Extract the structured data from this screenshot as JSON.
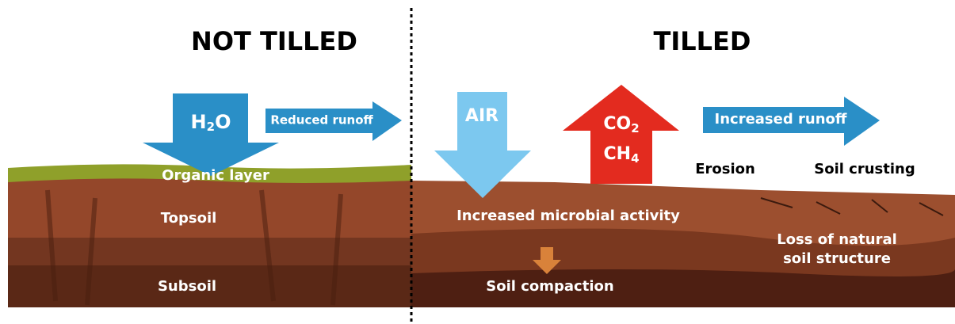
{
  "left": {
    "title": "NOT TILLED",
    "water": [
      "H",
      "2",
      "O"
    ],
    "runoff": "Reduced runoff",
    "layers": [
      "Organic layer",
      "Topsoil",
      "Subsoil"
    ]
  },
  "right": {
    "title": "TILLED",
    "air": "AIR",
    "co2": [
      "CO",
      "2"
    ],
    "ch4": [
      "CH",
      "4"
    ],
    "runoff": "Increased runoff",
    "erosion": "Erosion",
    "crusting": "Soil crusting",
    "microbial": "Increased microbial activity",
    "structure": [
      "Loss of natural",
      "soil structure"
    ],
    "compaction": "Soil compaction"
  }
}
